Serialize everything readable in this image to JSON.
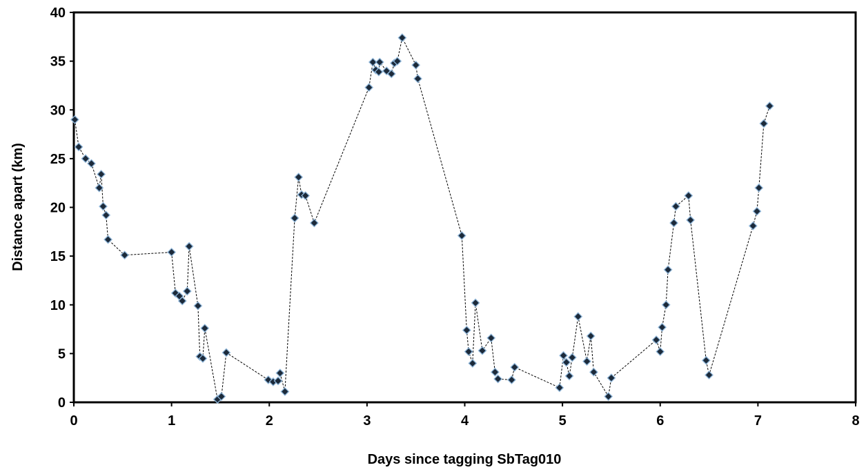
{
  "chart_data": {
    "type": "scatter",
    "title": "",
    "xlabel": "Days since tagging SbTag010",
    "ylabel": "Distance apart (km)",
    "xlim": [
      0,
      8
    ],
    "ylim": [
      0,
      40
    ],
    "xticks": [
      0,
      1,
      2,
      3,
      4,
      5,
      6,
      7,
      8
    ],
    "yticks": [
      0,
      5,
      10,
      15,
      20,
      25,
      30,
      35,
      40
    ],
    "grid": false,
    "legend": "none",
    "marker": "diamond",
    "line_style": "dashed",
    "colors": {
      "marker_fill": "#1c2a3a",
      "marker_edge": "#8fb6d9",
      "line": "#000000"
    },
    "series": [
      {
        "x": [
          0.01,
          0.05,
          0.12,
          0.18,
          0.26,
          0.28,
          0.3,
          0.33,
          0.35,
          0.52,
          1.0,
          1.04,
          1.08,
          1.11,
          1.16,
          1.18,
          1.27,
          1.29,
          1.32,
          1.34,
          1.47,
          1.51,
          1.56,
          1.99,
          2.04,
          2.09,
          2.11,
          2.16,
          2.26,
          2.3,
          2.33,
          2.37,
          2.46,
          3.02,
          3.06,
          3.09,
          3.12,
          3.13,
          3.2,
          3.25,
          3.28,
          3.31,
          3.36,
          3.5,
          3.52,
          3.97,
          4.02,
          4.04,
          4.08,
          4.11,
          4.18,
          4.27,
          4.31,
          4.34,
          4.48,
          4.51,
          4.97,
          5.01,
          5.04,
          5.07,
          5.1,
          5.16,
          5.25,
          5.29,
          5.32,
          5.47,
          5.5,
          5.96,
          6.0,
          6.02,
          6.06,
          6.08,
          6.14,
          6.16,
          6.29,
          6.31,
          6.47,
          6.5,
          6.95,
          6.99,
          7.01,
          7.06,
          7.12
        ],
        "y": [
          29.0,
          26.2,
          25.0,
          24.5,
          22.0,
          23.4,
          20.1,
          19.2,
          16.7,
          15.1,
          15.4,
          11.2,
          10.9,
          10.4,
          11.4,
          16.0,
          9.9,
          4.7,
          4.5,
          7.6,
          0.3,
          0.6,
          5.1,
          2.3,
          2.1,
          2.2,
          3.0,
          1.1,
          18.9,
          23.1,
          21.3,
          21.2,
          18.4,
          32.3,
          34.9,
          34.1,
          33.9,
          34.9,
          34.0,
          33.7,
          34.8,
          35.0,
          37.4,
          34.6,
          33.2,
          17.1,
          7.4,
          5.2,
          4.0,
          10.2,
          5.3,
          6.6,
          3.1,
          2.4,
          2.3,
          3.6,
          1.5,
          4.8,
          4.1,
          2.7,
          4.6,
          8.8,
          4.2,
          6.8,
          3.1,
          0.6,
          2.5,
          6.4,
          5.2,
          7.7,
          10.0,
          13.6,
          18.4,
          20.1,
          21.2,
          18.7,
          4.3,
          2.8,
          18.1,
          19.6,
          22.0,
          28.6,
          30.4
        ]
      }
    ]
  }
}
